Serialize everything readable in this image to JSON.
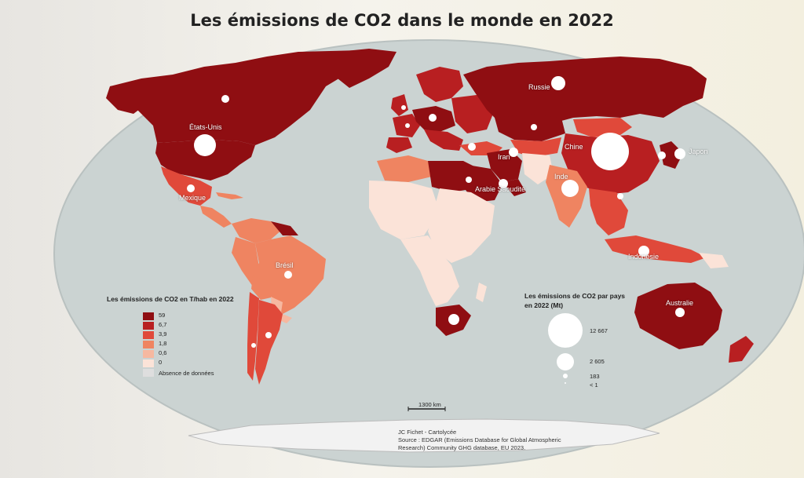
{
  "title": "Les émissions de CO2 dans le monde en 2022",
  "colors": {
    "ocean": "#cbd3d2",
    "class_1": "#8f0e12",
    "class_2": "#b81f21",
    "class_3": "#e0493a",
    "class_4": "#ef8461",
    "class_5": "#f6b8a0",
    "class_6": "#fbe3d8",
    "no_data": "#dedede",
    "circle": "#ffffff"
  },
  "country_labels": [
    "États-Unis",
    "Mexique",
    "Brésil",
    "Russie",
    "Chine",
    "Japon",
    "Iran",
    "Inde",
    "Arabie Saoudite",
    "Indonésie",
    "Australie"
  ],
  "legend_choro": {
    "title": "Les émissions de CO2 en T/hab en 2022",
    "classes": [
      "59",
      "6,7",
      "3,9",
      "1,8",
      "0,6",
      "0"
    ],
    "no_data_label": "Absence de données"
  },
  "legend_prop": {
    "title_line1": "Les émissions de CO2 par pays",
    "title_line2": "en 2022 (Mt)",
    "values": [
      "12 667",
      "2 605",
      "183",
      "< 1"
    ]
  },
  "scale_bar": "1300 km",
  "credits": {
    "author": "JC Fichet - Cartolycée",
    "source": "Source : EDGAR (Emissions Database for Global Atmospheric Research) Community GHG database, EU 2023."
  }
}
